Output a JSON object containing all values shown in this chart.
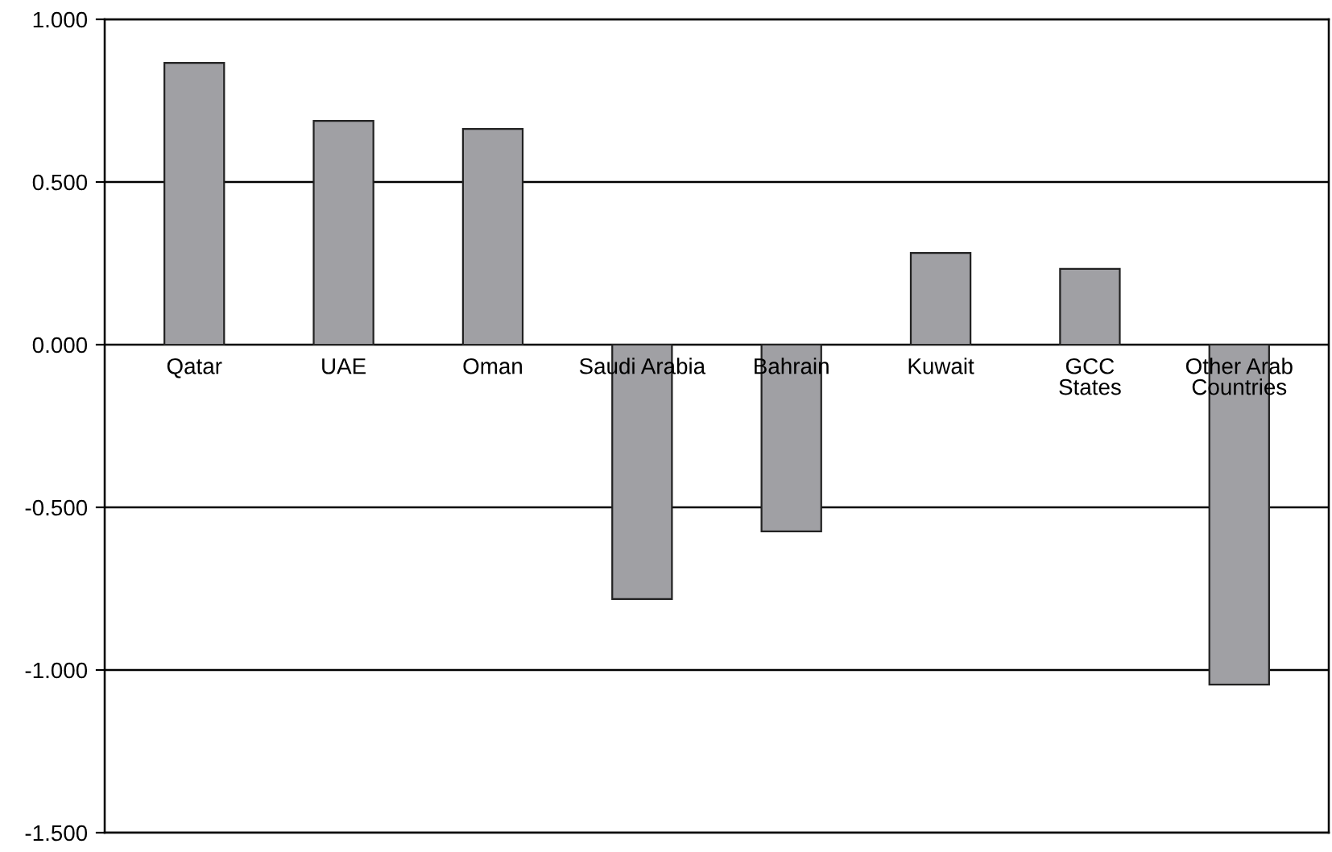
{
  "chart_data": {
    "type": "bar",
    "categories": [
      "Qatar",
      "UAE",
      "Oman",
      "Saudi Arabia",
      "Bahrain",
      "Kuwait",
      "GCC\nStates",
      "Other Arab\nCountries"
    ],
    "values": [
      0.866,
      0.688,
      0.663,
      -0.782,
      -0.574,
      0.282,
      0.233,
      -1.045
    ],
    "color": "#a0a0a4",
    "ylim": [
      -1.5,
      1.0
    ],
    "yticks": [
      {
        "value": -1.5,
        "label": "-1.500"
      },
      {
        "value": -1.0,
        "label": "-1.000"
      },
      {
        "value": -0.5,
        "label": "-0.500"
      },
      {
        "value": 0,
        "label": "0.000"
      },
      {
        "value": 0.5,
        "label": "0.500"
      },
      {
        "value": 1.0,
        "label": "1.000"
      }
    ],
    "grid": "y"
  }
}
